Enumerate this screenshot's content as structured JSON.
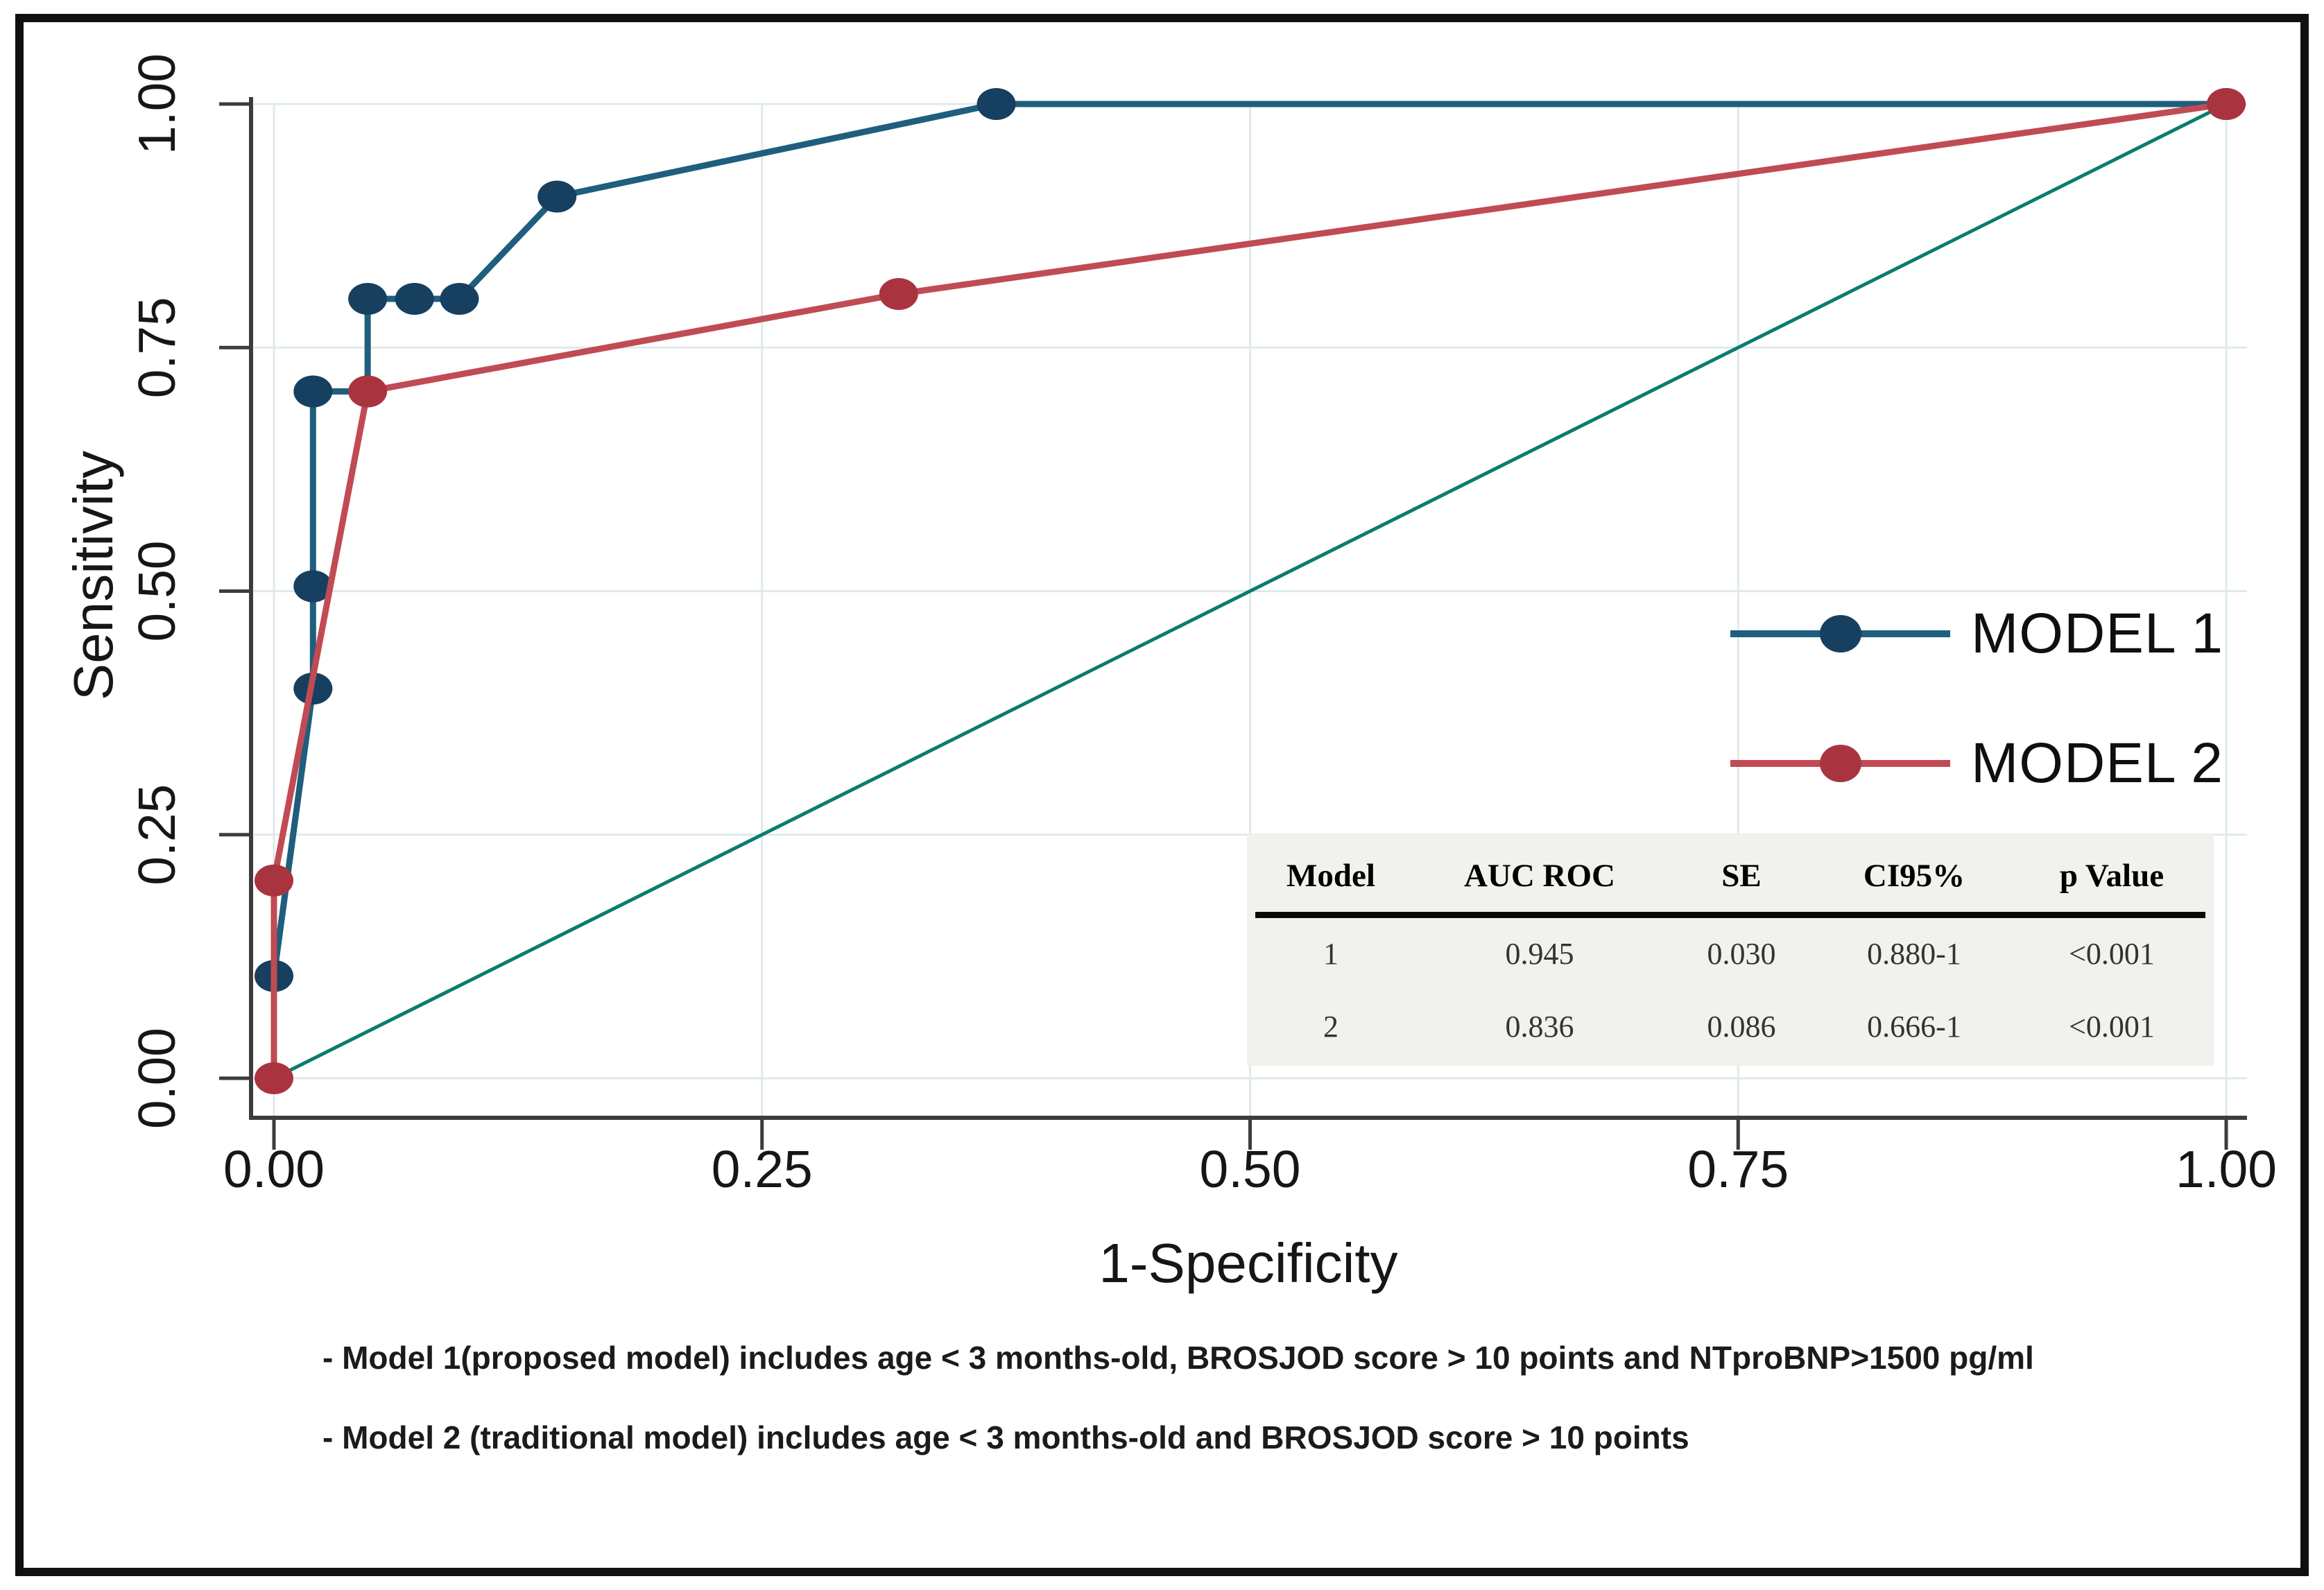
{
  "figure": {
    "description": "ROC curve comparison of two predictive models"
  },
  "axes": {
    "x": {
      "title": "1-Specificity",
      "ticks": [
        "0.00",
        "0.25",
        "0.50",
        "0.75",
        "1.00"
      ],
      "tick_values": [
        0,
        0.25,
        0.5,
        0.75,
        1.0
      ]
    },
    "y": {
      "title": "Sensitivity",
      "ticks": [
        "0.00",
        "0.25",
        "0.50",
        "0.75",
        "1.00"
      ],
      "tick_values": [
        0,
        0.25,
        0.5,
        0.75,
        1.0
      ]
    }
  },
  "legend": {
    "items": [
      {
        "label": "MODEL 1",
        "line_color": "#1f5e7d",
        "marker_color": "#173f5f"
      },
      {
        "label": "MODEL 2",
        "line_color": "#c04b54",
        "marker_color": "#a93440"
      }
    ]
  },
  "table": {
    "headers": [
      "Model",
      "AUC ROC",
      "SE",
      "CI95%",
      "p Value"
    ],
    "rows": [
      [
        "1",
        "0.945",
        "0.030",
        "0.880-1",
        "<0.001"
      ],
      [
        "2",
        "0.836",
        "0.086",
        "0.666-1",
        "<0.001"
      ]
    ]
  },
  "notes": [
    "- Model 1(proposed model) includes age < 3 months-old, BROSJOD score > 10 points and NTproBNP>1500 pg/ml",
    "- Model 2 (traditional model) includes age < 3 months-old and BROSJOD score > 10 points"
  ],
  "colors": {
    "grid": "#dfeaec",
    "axis": "#3c3c3c",
    "tick_text": "#161616",
    "reference_line": "#0b7c6e",
    "table_bg": "#f1f1ee"
  },
  "chart_data": {
    "type": "line",
    "subtype": "ROC curves",
    "xlabel": "1-Specificity",
    "ylabel": "Sensitivity",
    "xlim": [
      0,
      1
    ],
    "ylim": [
      0,
      1
    ],
    "xticks": [
      0,
      0.25,
      0.5,
      0.75,
      1.0
    ],
    "yticks": [
      0,
      0.25,
      0.5,
      0.75,
      1.0
    ],
    "grid": true,
    "legend_position": "right-middle",
    "series": [
      {
        "name": "MODEL 1",
        "color": "#1f5e7d",
        "marker_color": "#173f5f",
        "path": [
          [
            0,
            0
          ],
          [
            0,
            0.105
          ],
          [
            0.02,
            0.4
          ],
          [
            0.02,
            0.505
          ],
          [
            0.02,
            0.705
          ],
          [
            0.048,
            0.705
          ],
          [
            0.048,
            0.8
          ],
          [
            0.072,
            0.8
          ],
          [
            0.095,
            0.8
          ],
          [
            0.145,
            0.905
          ],
          [
            0.37,
            1.0
          ],
          [
            1.0,
            1.0
          ]
        ],
        "markers": [
          [
            0,
            0.105
          ],
          [
            0.02,
            0.4
          ],
          [
            0.02,
            0.505
          ],
          [
            0.02,
            0.705
          ],
          [
            0.048,
            0.8
          ],
          [
            0.072,
            0.8
          ],
          [
            0.095,
            0.8
          ],
          [
            0.145,
            0.905
          ],
          [
            0.37,
            1.0
          ],
          [
            1.0,
            1.0
          ]
        ],
        "auc": 0.945
      },
      {
        "name": "MODEL 2",
        "color": "#c04b54",
        "marker_color": "#a93440",
        "path": [
          [
            0,
            0
          ],
          [
            0,
            0.203
          ],
          [
            0.048,
            0.705
          ],
          [
            0.32,
            0.805
          ],
          [
            1.0,
            1.0
          ]
        ],
        "markers": [
          [
            0,
            0
          ],
          [
            0,
            0.203
          ],
          [
            0.048,
            0.705
          ],
          [
            0.32,
            0.805
          ],
          [
            1.0,
            1.0
          ]
        ],
        "auc": 0.836
      },
      {
        "name": "reference",
        "color": "#0b7c6e",
        "path": [
          [
            0,
            0
          ],
          [
            1.0,
            1.0
          ]
        ],
        "markers": [],
        "auc": 0.5
      }
    ],
    "stats": [
      {
        "model": "1",
        "auc_roc": "0.945",
        "se": "0.030",
        "ci95": "0.880-1",
        "p_value": "<0.001"
      },
      {
        "model": "2",
        "auc_roc": "0.836",
        "se": "0.086",
        "ci95": "0.666-1",
        "p_value": "<0.001"
      }
    ]
  }
}
